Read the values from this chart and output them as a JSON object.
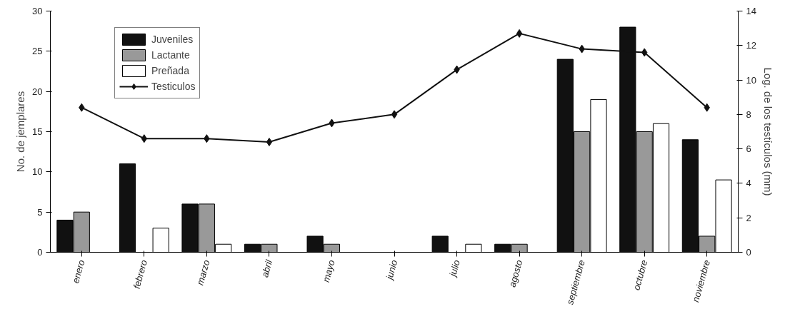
{
  "chart_data": {
    "type": "bar",
    "ylabel": "No. de jemplares",
    "y2label": "Log. de los testículos (mm)",
    "categories": [
      "enero",
      "febrero",
      "marzo",
      "abril",
      "mayo",
      "junio",
      "julio",
      "agosto",
      "septiembre",
      "octubre",
      "noviembre"
    ],
    "series": [
      {
        "name": "Juveniles",
        "color": "#111111",
        "values": [
          4,
          11,
          6,
          1,
          2,
          0,
          2,
          1,
          24,
          28,
          14
        ]
      },
      {
        "name": "Lactante",
        "color": "#999999",
        "values": [
          5,
          0,
          6,
          1,
          1,
          0,
          0,
          1,
          15,
          15,
          2
        ]
      },
      {
        "name": "Preñada",
        "color": "#ffffff",
        "values": [
          0,
          3,
          1,
          0,
          0,
          0,
          1,
          0,
          19,
          16,
          9
        ]
      },
      {
        "name": "Testiculos",
        "type": "line",
        "axis": "y2",
        "color": "#111111",
        "marker": "diamond",
        "values": [
          8.4,
          6.6,
          6.6,
          6.4,
          7.5,
          8.0,
          10.6,
          12.7,
          11.8,
          11.6,
          8.4
        ]
      }
    ],
    "ylim": [
      0,
      30
    ],
    "yticks": [
      0,
      5,
      10,
      15,
      20,
      25,
      30
    ],
    "y2lim": [
      0,
      14
    ],
    "y2ticks": [
      0,
      2,
      4,
      6,
      8,
      10,
      12,
      14
    ],
    "legend": "top left",
    "grid": false
  }
}
